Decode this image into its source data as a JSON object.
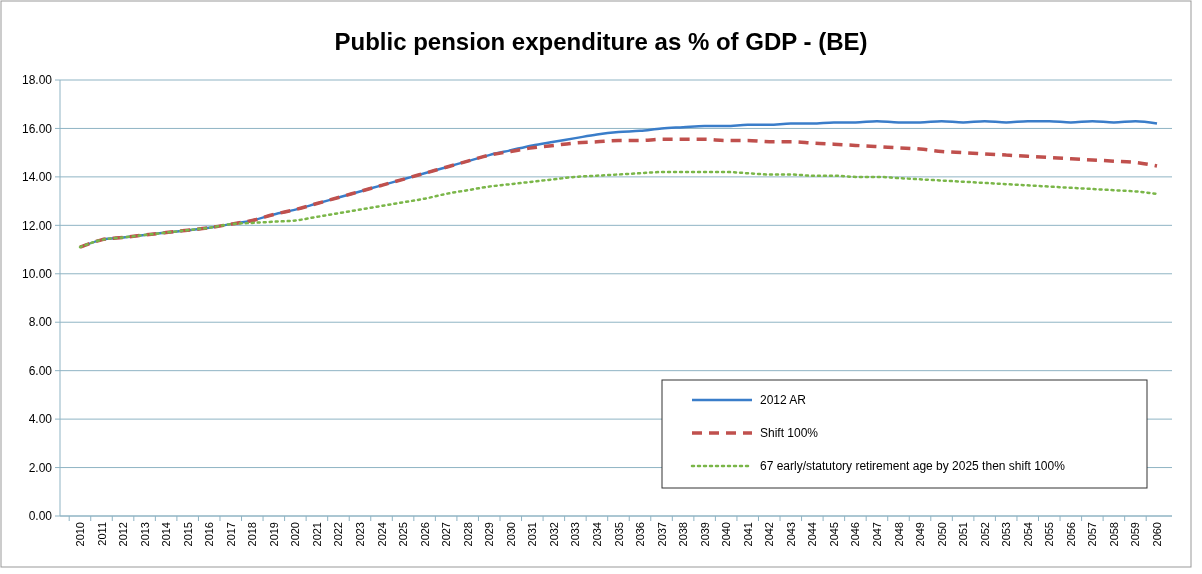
{
  "chart_data": {
    "type": "line",
    "title": "Public pension expenditure as % of GDP - (BE)",
    "categories": [
      "2010",
      "2011",
      "2012",
      "2013",
      "2014",
      "2015",
      "2016",
      "2017",
      "2018",
      "2019",
      "2020",
      "2021",
      "2022",
      "2023",
      "2024",
      "2025",
      "2026",
      "2027",
      "2028",
      "2029",
      "2030",
      "2031",
      "2032",
      "2033",
      "2034",
      "2035",
      "2036",
      "2037",
      "2038",
      "2039",
      "2040",
      "2041",
      "2042",
      "2043",
      "2044",
      "2045",
      "2046",
      "2047",
      "2048",
      "2049",
      "2050",
      "2051",
      "2052",
      "2053",
      "2054",
      "2055",
      "2056",
      "2057",
      "2058",
      "2059",
      "2060"
    ],
    "series": [
      {
        "name": "2012 AR",
        "color": "#3a7dc9",
        "line_style": "solid",
        "values": [
          11.1,
          11.4,
          11.5,
          11.6,
          11.7,
          11.8,
          11.9,
          12.05,
          12.2,
          12.45,
          12.65,
          12.9,
          13.15,
          13.4,
          13.65,
          13.9,
          14.15,
          14.4,
          14.65,
          14.9,
          15.1,
          15.3,
          15.45,
          15.6,
          15.75,
          15.85,
          15.9,
          16.0,
          16.05,
          16.1,
          16.1,
          16.15,
          16.15,
          16.2,
          16.2,
          16.25,
          16.25,
          16.3,
          16.25,
          16.25,
          16.3,
          16.25,
          16.3,
          16.25,
          16.3,
          16.3,
          16.25,
          16.3,
          16.25,
          16.3,
          16.2
        ]
      },
      {
        "name": "Shift 100%",
        "color": "#c0504d",
        "line_style": "dashed",
        "values": [
          11.1,
          11.4,
          11.5,
          11.6,
          11.7,
          11.8,
          11.9,
          12.05,
          12.2,
          12.45,
          12.65,
          12.9,
          13.15,
          13.4,
          13.65,
          13.9,
          14.15,
          14.4,
          14.65,
          14.9,
          15.05,
          15.2,
          15.3,
          15.4,
          15.45,
          15.5,
          15.5,
          15.55,
          15.55,
          15.55,
          15.5,
          15.5,
          15.45,
          15.45,
          15.4,
          15.35,
          15.3,
          15.25,
          15.2,
          15.15,
          15.05,
          15.0,
          14.95,
          14.9,
          14.85,
          14.8,
          14.75,
          14.7,
          14.65,
          14.6,
          14.45
        ]
      },
      {
        "name": "67 early/statutory retirement age by 2025 then shift 100%",
        "color": "#7ab648",
        "line_style": "dotted",
        "values": [
          11.1,
          11.4,
          11.5,
          11.6,
          11.7,
          11.8,
          11.9,
          12.05,
          12.1,
          12.15,
          12.2,
          12.35,
          12.5,
          12.65,
          12.8,
          12.95,
          13.1,
          13.3,
          13.45,
          13.6,
          13.7,
          13.8,
          13.9,
          14.0,
          14.05,
          14.1,
          14.15,
          14.2,
          14.2,
          14.2,
          14.2,
          14.15,
          14.1,
          14.1,
          14.05,
          14.05,
          14.0,
          14.0,
          13.95,
          13.9,
          13.85,
          13.8,
          13.75,
          13.7,
          13.65,
          13.6,
          13.55,
          13.5,
          13.45,
          13.4,
          13.3
        ]
      }
    ],
    "ylim": [
      0,
      18
    ],
    "yticks": [
      {
        "value": 0,
        "label": "0.00"
      },
      {
        "value": 2,
        "label": "2.00"
      },
      {
        "value": 4,
        "label": "4.00"
      },
      {
        "value": 6,
        "label": "6.00"
      },
      {
        "value": 8,
        "label": "8.00"
      },
      {
        "value": 10,
        "label": "10.00"
      },
      {
        "value": 12,
        "label": "12.00"
      },
      {
        "value": 14,
        "label": "14.00"
      },
      {
        "value": 16,
        "label": "16.00"
      },
      {
        "value": 18,
        "label": "18.00"
      }
    ],
    "grid": "y",
    "legend": "bottom right"
  }
}
